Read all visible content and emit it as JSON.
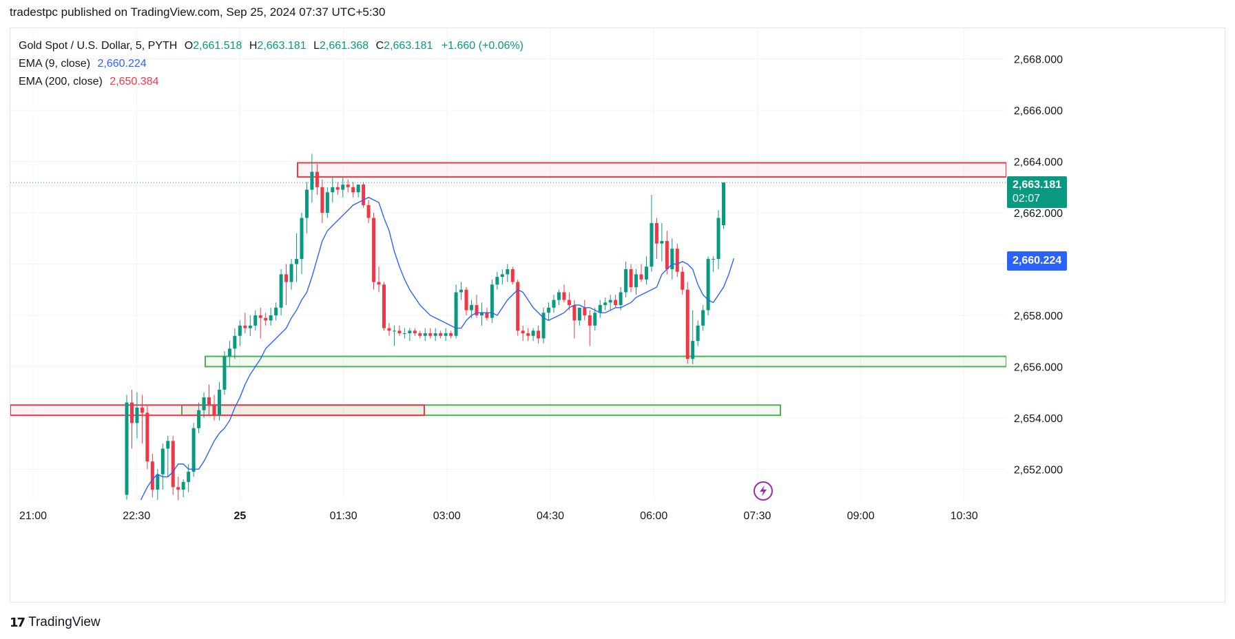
{
  "header": {
    "publisher": "tradestpc published on TradingView.com, Sep 25, 2024 07:37 UTC+5:30"
  },
  "legend": {
    "symbol": "Gold Spot / U.S. Dollar, 5, PYTH",
    "o_label": "O",
    "o_value": "2,661.518",
    "h_label": "H",
    "h_value": "2,663.181",
    "l_label": "L",
    "l_value": "2,661.368",
    "c_label": "C",
    "c_value": "2,663.181",
    "change": "+1.660 (+0.06%)",
    "ema9_label": "EMA (9, close)",
    "ema9_value": "2,660.224",
    "ema200_label": "EMA (200, close)",
    "ema200_value": "2,650.384"
  },
  "price_tags": {
    "last_price": "2,663.181",
    "countdown": "02:07",
    "ema9": "2,660.224"
  },
  "brand": {
    "name": "TradingView"
  },
  "colors": {
    "up": "#089981",
    "down": "#f23645",
    "ema9": "#2962ff",
    "resistance_zone": "#f23645",
    "support_zone": "#4caf50",
    "grid": "#f0f3fa"
  },
  "chart_data": {
    "type": "candlestick",
    "symbol": "XAUUSD",
    "timeframe": "5",
    "x_axis": {
      "ticks": [
        "21:00",
        "22:30",
        "25",
        "01:30",
        "03:00",
        "04:30",
        "06:00",
        "07:30",
        "09:00",
        "10:30"
      ]
    },
    "y_axis": {
      "range": [
        2650.8,
        2669.2
      ],
      "ticks": [
        2652,
        2654,
        2656,
        2658,
        2660,
        2662,
        2664,
        2666,
        2668
      ],
      "tick_labels": [
        "2,652.000",
        "2,654.000",
        "2,656.000",
        "2,658.000",
        "2,660.000",
        "2,662.000",
        "2,664.000",
        "2,666.000",
        "2,668.000"
      ]
    },
    "candles": [
      [
        2651,
        2654.9,
        2650.2,
        2654.6
      ],
      [
        2654.6,
        2655.1,
        2652.8,
        2653.8
      ],
      [
        2653.8,
        2655.0,
        2653.2,
        2654.4
      ],
      [
        2654.4,
        2654.9,
        2653.0,
        2654.2
      ],
      [
        2654.2,
        2654.5,
        2652.0,
        2652.3
      ],
      [
        2652.3,
        2652.6,
        2650.9,
        2651.2
      ],
      [
        2651.2,
        2652.0,
        2650.5,
        2651.8
      ],
      [
        2651.8,
        2653.0,
        2651.2,
        2652.8
      ],
      [
        2652.8,
        2653.3,
        2651.7,
        2653.1
      ],
      [
        2653.1,
        2653.3,
        2651.0,
        2651.3
      ],
      [
        2651.3,
        2651.7,
        2650.8,
        2651.2
      ],
      [
        2651.2,
        2651.6,
        2650.9,
        2651.5
      ],
      [
        2651.5,
        2652.2,
        2651.1,
        2651.9
      ],
      [
        2651.9,
        2653.8,
        2651.7,
        2653.6
      ],
      [
        2653.6,
        2654.6,
        2653.4,
        2654.3
      ],
      [
        2654.3,
        2655.0,
        2654.0,
        2654.8
      ],
      [
        2654.8,
        2655.3,
        2654.1,
        2654.5
      ],
      [
        2654.5,
        2654.9,
        2653.9,
        2654.1
      ],
      [
        2654.1,
        2655.4,
        2653.9,
        2655.1
      ],
      [
        2655.1,
        2656.6,
        2654.9,
        2656.4
      ],
      [
        2656.4,
        2657.0,
        2656.0,
        2656.7
      ],
      [
        2656.7,
        2657.5,
        2656.3,
        2657.2
      ],
      [
        2657.2,
        2657.8,
        2656.8,
        2657.6
      ],
      [
        2657.6,
        2658.1,
        2657.3,
        2657.5
      ],
      [
        2657.5,
        2658.0,
        2657.2,
        2657.6
      ],
      [
        2657.6,
        2658.2,
        2657.4,
        2658.0
      ],
      [
        2658.0,
        2658.3,
        2657.1,
        2657.9
      ],
      [
        2657.9,
        2658.1,
        2657.6,
        2657.8
      ],
      [
        2657.8,
        2658.3,
        2657.6,
        2658.0
      ],
      [
        2658.0,
        2658.5,
        2657.8,
        2658.3
      ],
      [
        2658.3,
        2659.8,
        2658.0,
        2659.6
      ],
      [
        2659.6,
        2660.0,
        2658.4,
        2659.3
      ],
      [
        2659.3,
        2660.2,
        2659.0,
        2660.0
      ],
      [
        2660.0,
        2661.2,
        2659.3,
        2660.2
      ],
      [
        2660.2,
        2662.0,
        2659.6,
        2661.8
      ],
      [
        2661.8,
        2663.2,
        2661.2,
        2662.9
      ],
      [
        2662.9,
        2664.3,
        2662.4,
        2663.6
      ],
      [
        2663.6,
        2663.9,
        2662.7,
        2663.0
      ],
      [
        2663.0,
        2663.3,
        2661.6,
        2662.0
      ],
      [
        2662.0,
        2663.0,
        2661.8,
        2662.8
      ],
      [
        2662.8,
        2663.4,
        2662.4,
        2663.0
      ],
      [
        2663.0,
        2663.2,
        2662.7,
        2662.9
      ],
      [
        2662.9,
        2663.4,
        2662.6,
        2663.1
      ],
      [
        2663.1,
        2663.3,
        2662.8,
        2663.0
      ],
      [
        2663.0,
        2663.2,
        2662.6,
        2662.8
      ],
      [
        2662.8,
        2663.1,
        2662.6,
        2663.1
      ],
      [
        2663.1,
        2663.2,
        2662.2,
        2662.3
      ],
      [
        2662.3,
        2662.5,
        2661.6,
        2661.8
      ],
      [
        2661.8,
        2662.0,
        2659.0,
        2659.3
      ],
      [
        2659.3,
        2659.9,
        2658.9,
        2659.2
      ],
      [
        2659.2,
        2659.3,
        2657.4,
        2657.5
      ],
      [
        2657.5,
        2657.7,
        2657.2,
        2657.4
      ],
      [
        2657.4,
        2657.6,
        2656.8,
        2657.4
      ],
      [
        2657.4,
        2657.6,
        2657.2,
        2657.3
      ],
      [
        2657.3,
        2657.5,
        2657.1,
        2657.3
      ],
      [
        2657.3,
        2657.5,
        2657.0,
        2657.4
      ],
      [
        2657.4,
        2657.5,
        2657.2,
        2657.3
      ],
      [
        2657.3,
        2657.4,
        2657.1,
        2657.2
      ],
      [
        2657.2,
        2657.5,
        2657.0,
        2657.3
      ],
      [
        2657.3,
        2657.5,
        2657.1,
        2657.2
      ],
      [
        2657.2,
        2657.5,
        2657.0,
        2657.3
      ],
      [
        2657.3,
        2657.4,
        2657.1,
        2657.2
      ],
      [
        2657.2,
        2657.5,
        2657.0,
        2657.3
      ],
      [
        2657.3,
        2657.4,
        2657.1,
        2657.2
      ],
      [
        2657.2,
        2659.2,
        2657.1,
        2658.9
      ],
      [
        2658.9,
        2659.3,
        2658.6,
        2659.0
      ],
      [
        2659.0,
        2659.1,
        2658.0,
        2658.2
      ],
      [
        2658.2,
        2658.6,
        2657.9,
        2658.4
      ],
      [
        2658.4,
        2658.8,
        2657.9,
        2658.0
      ],
      [
        2658.0,
        2658.5,
        2657.6,
        2658.1
      ],
      [
        2658.1,
        2658.3,
        2657.8,
        2657.9
      ],
      [
        2657.9,
        2659.4,
        2657.7,
        2659.2
      ],
      [
        2659.2,
        2659.7,
        2659.0,
        2659.5
      ],
      [
        2659.5,
        2659.8,
        2659.2,
        2659.6
      ],
      [
        2659.6,
        2660.0,
        2659.3,
        2659.8
      ],
      [
        2659.8,
        2659.9,
        2659.2,
        2659.3
      ],
      [
        2659.3,
        2659.4,
        2657.2,
        2657.4
      ],
      [
        2657.4,
        2657.6,
        2657.0,
        2657.3
      ],
      [
        2657.3,
        2657.5,
        2657.0,
        2657.2
      ],
      [
        2657.2,
        2657.5,
        2657.0,
        2657.4
      ],
      [
        2657.4,
        2657.6,
        2656.9,
        2657.1
      ],
      [
        2657.1,
        2658.3,
        2656.9,
        2658.1
      ],
      [
        2658.1,
        2658.5,
        2657.8,
        2658.3
      ],
      [
        2658.3,
        2658.8,
        2658.1,
        2658.6
      ],
      [
        2658.6,
        2659.0,
        2658.4,
        2658.9
      ],
      [
        2658.9,
        2659.2,
        2658.5,
        2658.6
      ],
      [
        2658.6,
        2658.9,
        2658.2,
        2658.4
      ],
      [
        2658.4,
        2658.6,
        2657.1,
        2657.8
      ],
      [
        2657.8,
        2658.2,
        2657.6,
        2658.3
      ],
      [
        2658.3,
        2658.6,
        2657.8,
        2658.0
      ],
      [
        2658.0,
        2658.2,
        2656.8,
        2657.6
      ],
      [
        2657.6,
        2658.3,
        2657.4,
        2658.1
      ],
      [
        2658.1,
        2658.6,
        2657.9,
        2658.4
      ],
      [
        2658.4,
        2658.7,
        2658.2,
        2658.5
      ],
      [
        2658.5,
        2658.8,
        2658.2,
        2658.6
      ],
      [
        2658.6,
        2658.8,
        2658.3,
        2658.4
      ],
      [
        2658.4,
        2659.1,
        2658.2,
        2658.9
      ],
      [
        2658.9,
        2660.1,
        2658.7,
        2659.8
      ],
      [
        2659.8,
        2660.0,
        2658.9,
        2659.1
      ],
      [
        2659.1,
        2659.8,
        2658.8,
        2659.6
      ],
      [
        2659.6,
        2660.0,
        2659.3,
        2659.4
      ],
      [
        2659.4,
        2660.3,
        2659.2,
        2659.9
      ],
      [
        2659.9,
        2662.7,
        2659.7,
        2661.6
      ],
      [
        2661.6,
        2661.8,
        2660.2,
        2660.8
      ],
      [
        2660.8,
        2661.6,
        2660.1,
        2660.9
      ],
      [
        2660.9,
        2661.3,
        2659.6,
        2659.8
      ],
      [
        2659.8,
        2661.0,
        2659.4,
        2660.6
      ],
      [
        2660.6,
        2660.8,
        2659.5,
        2659.7
      ],
      [
        2659.7,
        2659.9,
        2658.8,
        2659.0
      ],
      [
        2659.0,
        2659.3,
        2656.1,
        2656.3
      ],
      [
        2656.3,
        2658.2,
        2656.1,
        2657.0
      ],
      [
        2657.0,
        2657.8,
        2656.8,
        2657.6
      ],
      [
        2657.6,
        2658.4,
        2657.4,
        2658.2
      ],
      [
        2658.2,
        2660.3,
        2658.0,
        2660.2
      ],
      [
        2660.2,
        2660.3,
        2659.7,
        2660.2
      ],
      [
        2660.2,
        2662.1,
        2659.8,
        2661.8
      ],
      [
        2661.518,
        2663.181,
        2661.368,
        2663.181
      ]
    ],
    "ema9": [
      2650.5,
      2650.9,
      2651.3,
      2651.6,
      2651.8,
      2651.7,
      2651.7,
      2651.9,
      2652.2,
      2652.2,
      2652.0,
      2652.0,
      2652.0,
      2652.3,
      2652.7,
      2653.1,
      2653.4,
      2653.6,
      2653.9,
      2654.4,
      2654.8,
      2655.3,
      2655.7,
      2656.0,
      2656.3,
      2656.7,
      2656.9,
      2657.1,
      2657.3,
      2657.5,
      2657.9,
      2658.2,
      2658.6,
      2658.9,
      2659.5,
      2660.2,
      2660.9,
      2661.3,
      2661.5,
      2661.7,
      2661.9,
      2662.1,
      2662.3,
      2662.4,
      2662.5,
      2662.6,
      2662.5,
      2662.4,
      2661.8,
      2661.3,
      2660.5,
      2659.9,
      2659.4,
      2659.0,
      2658.7,
      2658.4,
      2658.2,
      2658.0,
      2657.9,
      2657.8,
      2657.7,
      2657.6,
      2657.5,
      2657.5,
      2657.8,
      2658.0,
      2658.1,
      2658.1,
      2658.1,
      2658.1,
      2658.0,
      2658.3,
      2658.6,
      2658.8,
      2659.0,
      2658.9,
      2658.6,
      2658.3,
      2658.1,
      2657.9,
      2657.8,
      2657.9,
      2658.0,
      2658.1,
      2658.3,
      2658.4,
      2658.4,
      2658.3,
      2658.3,
      2658.2,
      2658.1,
      2658.1,
      2658.2,
      2658.3,
      2658.3,
      2658.4,
      2658.5,
      2658.7,
      2658.8,
      2658.9,
      2659.0,
      2659.1,
      2659.6,
      2659.8,
      2660.0,
      2660.0,
      2660.1,
      2660.0,
      2659.8,
      2659.2,
      2658.8,
      2658.6,
      2658.5,
      2658.8,
      2659.1,
      2659.6,
      2660.224
    ],
    "zones": [
      {
        "kind": "resistance",
        "from": 2663.4,
        "to": 2663.95
      },
      {
        "kind": "support",
        "from": 2656.0,
        "to": 2656.4
      },
      {
        "kind": "support",
        "from": 2654.1,
        "to": 2654.5
      },
      {
        "kind": "resistance",
        "from": 2654.1,
        "to": 2654.5
      }
    ]
  }
}
